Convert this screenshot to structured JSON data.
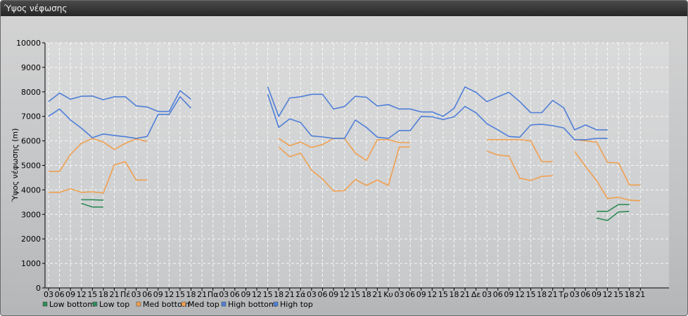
{
  "window": {
    "title": "Ύψος νέφωσης"
  },
  "chart_data": {
    "type": "line",
    "title": "",
    "xlabel": "",
    "ylabel": "Ύψος νέφωσης (m)",
    "ylim": [
      0,
      10000
    ],
    "y_ticks": [
      0,
      1000,
      2000,
      3000,
      4000,
      5000,
      6000,
      7000,
      8000,
      9000,
      10000
    ],
    "grid": true,
    "legend_position": "bottom-left",
    "x_tick_labels": [
      "03",
      "06",
      "09",
      "12",
      "15",
      "18",
      "21",
      "Πέ",
      "03",
      "06",
      "09",
      "12",
      "15",
      "18",
      "21",
      "Πα",
      "03",
      "06",
      "09",
      "12",
      "15",
      "18",
      "21",
      "Σά",
      "03",
      "06",
      "09",
      "12",
      "15",
      "18",
      "21",
      "Κυ",
      "03",
      "06",
      "09",
      "12",
      "15",
      "18",
      "21",
      "Δε",
      "03",
      "06",
      "09",
      "12",
      "15",
      "18",
      "21",
      "Τρ",
      "03",
      "06",
      "09",
      "12",
      "15",
      "18",
      "21"
    ],
    "series": [
      {
        "name": "Low bottom",
        "color": "#2e8b57",
        "values": [
          null,
          null,
          null,
          3450,
          3300,
          3300,
          null,
          null,
          null,
          null,
          null,
          null,
          null,
          null,
          null,
          null,
          null,
          null,
          null,
          null,
          null,
          null,
          null,
          null,
          null,
          null,
          null,
          null,
          null,
          null,
          null,
          null,
          null,
          null,
          null,
          null,
          null,
          null,
          null,
          null,
          null,
          null,
          null,
          null,
          null,
          null,
          null,
          null,
          null,
          null,
          2850,
          2750,
          3100,
          3120,
          null
        ]
      },
      {
        "name": "Low top",
        "color": "#2e8b57",
        "values": [
          null,
          null,
          null,
          3600,
          3600,
          3580,
          null,
          null,
          null,
          null,
          null,
          null,
          null,
          null,
          null,
          null,
          null,
          null,
          null,
          null,
          null,
          null,
          null,
          null,
          null,
          null,
          null,
          null,
          null,
          null,
          null,
          null,
          null,
          null,
          null,
          null,
          null,
          null,
          null,
          null,
          null,
          null,
          null,
          null,
          null,
          null,
          null,
          null,
          null,
          null,
          3120,
          3120,
          3400,
          3400,
          null
        ]
      },
      {
        "name": "Med bottom",
        "color": "#f0a050",
        "values": [
          3900,
          3900,
          4050,
          3900,
          3920,
          3870,
          5020,
          5150,
          4400,
          4400,
          null,
          null,
          null,
          null,
          null,
          null,
          null,
          null,
          null,
          null,
          null,
          5750,
          5350,
          5500,
          4800,
          4450,
          3950,
          3970,
          4420,
          4180,
          4400,
          4180,
          5750,
          5750,
          null,
          null,
          null,
          null,
          null,
          null,
          5580,
          5420,
          5380,
          4480,
          4380,
          4550,
          4580,
          null,
          5570,
          4950,
          4380,
          3650,
          3700,
          3580,
          3560
        ]
      },
      {
        "name": "Med top",
        "color": "#f0a050",
        "values": [
          4750,
          4750,
          5450,
          5900,
          6100,
          5950,
          5650,
          5900,
          6080,
          5970,
          null,
          null,
          null,
          null,
          null,
          null,
          null,
          null,
          null,
          null,
          null,
          6100,
          5800,
          5950,
          5730,
          5850,
          6100,
          6100,
          5500,
          5200,
          6050,
          6050,
          5930,
          5930,
          null,
          null,
          null,
          null,
          null,
          null,
          6050,
          6050,
          6050,
          6050,
          6000,
          5150,
          5150,
          null,
          6050,
          6000,
          5950,
          5120,
          5100,
          4200,
          4200
        ]
      },
      {
        "name": "High bottom",
        "color": "#4f7fd8",
        "values": [
          7000,
          7300,
          6850,
          6520,
          6130,
          6280,
          6220,
          6170,
          6100,
          6180,
          7080,
          7080,
          7800,
          7330,
          null,
          null,
          null,
          null,
          null,
          null,
          7900,
          6550,
          6900,
          6750,
          6200,
          6160,
          6100,
          6100,
          6850,
          6550,
          6150,
          6100,
          6420,
          6420,
          7000,
          6980,
          6870,
          6980,
          7400,
          7150,
          6700,
          6450,
          6180,
          6150,
          6650,
          6680,
          6620,
          6530,
          6050,
          6050,
          6100,
          6100,
          null,
          null,
          null
        ]
      },
      {
        "name": "High top",
        "color": "#4f7fd8",
        "values": [
          7600,
          7950,
          7700,
          7820,
          7830,
          7680,
          7800,
          7800,
          7430,
          7380,
          7200,
          7200,
          8050,
          7700,
          null,
          null,
          null,
          null,
          null,
          null,
          8200,
          7000,
          7750,
          7800,
          7900,
          7900,
          7300,
          7400,
          7820,
          7780,
          7420,
          7480,
          7300,
          7300,
          7180,
          7180,
          7000,
          7330,
          8200,
          7980,
          7600,
          7800,
          7980,
          7600,
          7150,
          7150,
          7650,
          7350,
          6450,
          6650,
          6450,
          6450,
          null,
          null,
          null
        ]
      }
    ]
  }
}
